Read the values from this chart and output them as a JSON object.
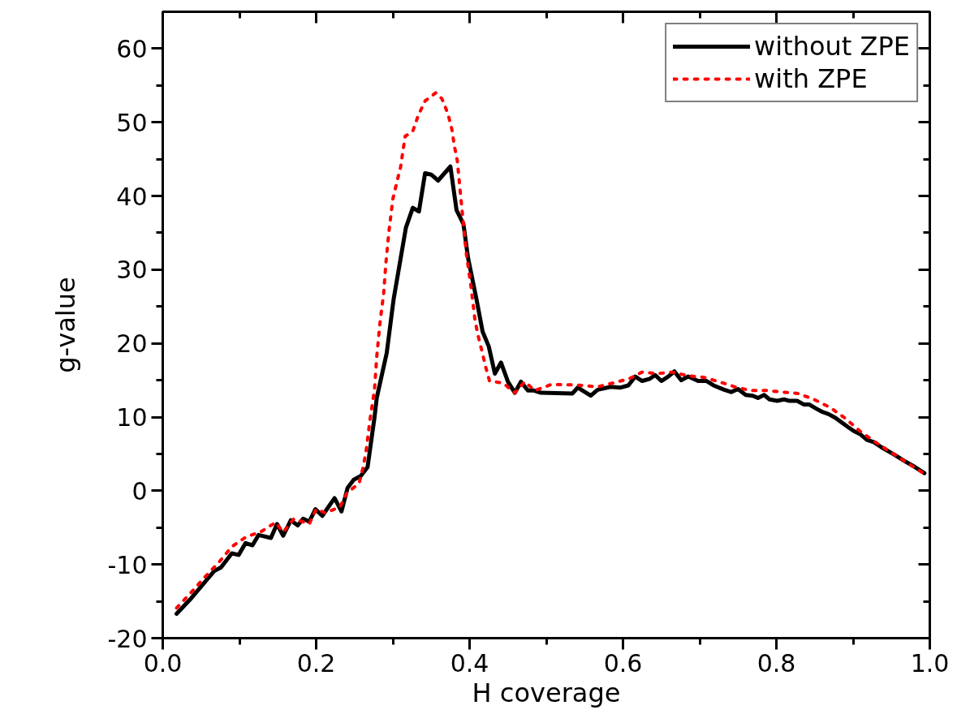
{
  "chart_data": {
    "type": "line",
    "xlabel": "H coverage",
    "ylabel": "g-value",
    "xlim": [
      0,
      1
    ],
    "ylim": [
      -20,
      65
    ],
    "xticks": [
      {
        "value": 0,
        "label": "0.0"
      },
      0.2,
      0.4,
      0.6,
      0.8,
      {
        "value": 1,
        "label": "1.0"
      }
    ],
    "yticks": [
      -20,
      -10,
      0,
      10,
      20,
      30,
      40,
      50,
      60
    ],
    "legend": "top right",
    "grid": false,
    "marker": "none",
    "series": [
      {
        "name": "without ZPE",
        "color": "#000000",
        "line_style": "solid",
        "x": [
          0.018,
          0.037,
          0.067,
          0.076,
          0.09,
          0.099,
          0.108,
          0.117,
          0.125,
          0.141,
          0.149,
          0.157,
          0.167,
          0.176,
          0.183,
          0.191,
          0.199,
          0.208,
          0.224,
          0.233,
          0.241,
          0.249,
          0.258,
          0.267,
          0.276,
          0.279,
          0.292,
          0.301,
          0.317,
          0.326,
          0.334,
          0.342,
          0.35,
          0.359,
          0.375,
          0.383,
          0.392,
          0.398,
          0.409,
          0.417,
          0.425,
          0.433,
          0.441,
          0.45,
          0.459,
          0.467,
          0.476,
          0.484,
          0.493,
          0.534,
          0.541,
          0.558,
          0.567,
          0.584,
          0.597,
          0.607,
          0.616,
          0.625,
          0.635,
          0.642,
          0.65,
          0.659,
          0.667,
          0.676,
          0.685,
          0.698,
          0.709,
          0.718,
          0.732,
          0.741,
          0.75,
          0.76,
          0.769,
          0.776,
          0.784,
          0.791,
          0.801,
          0.81,
          0.817,
          0.827,
          0.836,
          0.843,
          0.851,
          0.86,
          0.868,
          0.877,
          0.886,
          0.894,
          0.901,
          0.909,
          0.918,
          0.927,
          0.937,
          0.952,
          0.966,
          0.981,
          0.993
        ],
        "values": [
          -16.7,
          -14.6,
          -10.9,
          -10.4,
          -8.5,
          -8.7,
          -7.1,
          -7.4,
          -6.0,
          -6.4,
          -4.5,
          -6.1,
          -4.0,
          -4.7,
          -3.8,
          -4.2,
          -2.5,
          -3.4,
          -1.0,
          -2.8,
          0.4,
          1.5,
          2.0,
          3.2,
          9.9,
          12.6,
          18.7,
          26.0,
          35.7,
          38.4,
          37.9,
          43.1,
          42.9,
          42.1,
          44.0,
          38.1,
          36.2,
          31.6,
          26.0,
          21.6,
          19.6,
          15.9,
          17.4,
          14.8,
          13.3,
          14.8,
          13.6,
          13.6,
          13.3,
          13.2,
          14.0,
          12.9,
          13.7,
          14.1,
          14.0,
          14.3,
          15.5,
          14.9,
          15.2,
          15.7,
          14.9,
          15.5,
          16.2,
          15.0,
          15.5,
          14.9,
          14.9,
          14.3,
          13.7,
          13.4,
          13.8,
          13.0,
          12.9,
          12.6,
          13.0,
          12.4,
          12.2,
          12.4,
          12.2,
          12.2,
          11.7,
          11.7,
          11.2,
          10.7,
          10.4,
          9.9,
          9.2,
          8.6,
          8.1,
          7.7,
          6.9,
          6.6,
          5.9,
          5.0,
          4.1,
          3.2,
          2.4
        ]
      },
      {
        "name": "with ZPE",
        "color": "#ff0000",
        "line_style": "dotted",
        "x": [
          0.018,
          0.037,
          0.055,
          0.074,
          0.09,
          0.108,
          0.129,
          0.147,
          0.157,
          0.171,
          0.191,
          0.2,
          0.212,
          0.231,
          0.24,
          0.256,
          0.261,
          0.265,
          0.27,
          0.276,
          0.279,
          0.283,
          0.288,
          0.291,
          0.295,
          0.3,
          0.305,
          0.31,
          0.316,
          0.326,
          0.333,
          0.342,
          0.356,
          0.364,
          0.372,
          0.377,
          0.38,
          0.384,
          0.388,
          0.392,
          0.396,
          0.402,
          0.407,
          0.411,
          0.416,
          0.421,
          0.426,
          0.444,
          0.459,
          0.472,
          0.485,
          0.506,
          0.526,
          0.547,
          0.567,
          0.586,
          0.608,
          0.625,
          0.645,
          0.664,
          0.685,
          0.705,
          0.725,
          0.746,
          0.766,
          0.787,
          0.807,
          0.828,
          0.849,
          0.87,
          0.889,
          0.909,
          0.929,
          0.951,
          0.972,
          0.993
        ],
        "values": [
          -15.9,
          -13.8,
          -11.7,
          -9.6,
          -7.6,
          -6.3,
          -5.5,
          -4.3,
          -5.6,
          -3.8,
          -4.5,
          -2.5,
          -3.0,
          -2.2,
          -0.3,
          1.0,
          3.1,
          5.3,
          9.5,
          13.7,
          18.2,
          22.6,
          26.8,
          31.0,
          35.3,
          39.6,
          41.8,
          43.9,
          48.1,
          48.8,
          50.9,
          52.9,
          54.0,
          53.2,
          51.1,
          49.0,
          46.9,
          44.8,
          40.4,
          36.2,
          32.0,
          27.6,
          23.2,
          21.1,
          19.0,
          16.8,
          14.9,
          14.6,
          13.3,
          14.8,
          13.6,
          14.4,
          14.4,
          14.3,
          14.1,
          14.6,
          15.2,
          16.1,
          15.9,
          16.1,
          15.6,
          15.4,
          14.8,
          14.1,
          13.6,
          13.6,
          13.4,
          13.2,
          12.4,
          11.3,
          9.9,
          8.1,
          6.6,
          5.1,
          3.7,
          2.3
        ]
      }
    ]
  }
}
